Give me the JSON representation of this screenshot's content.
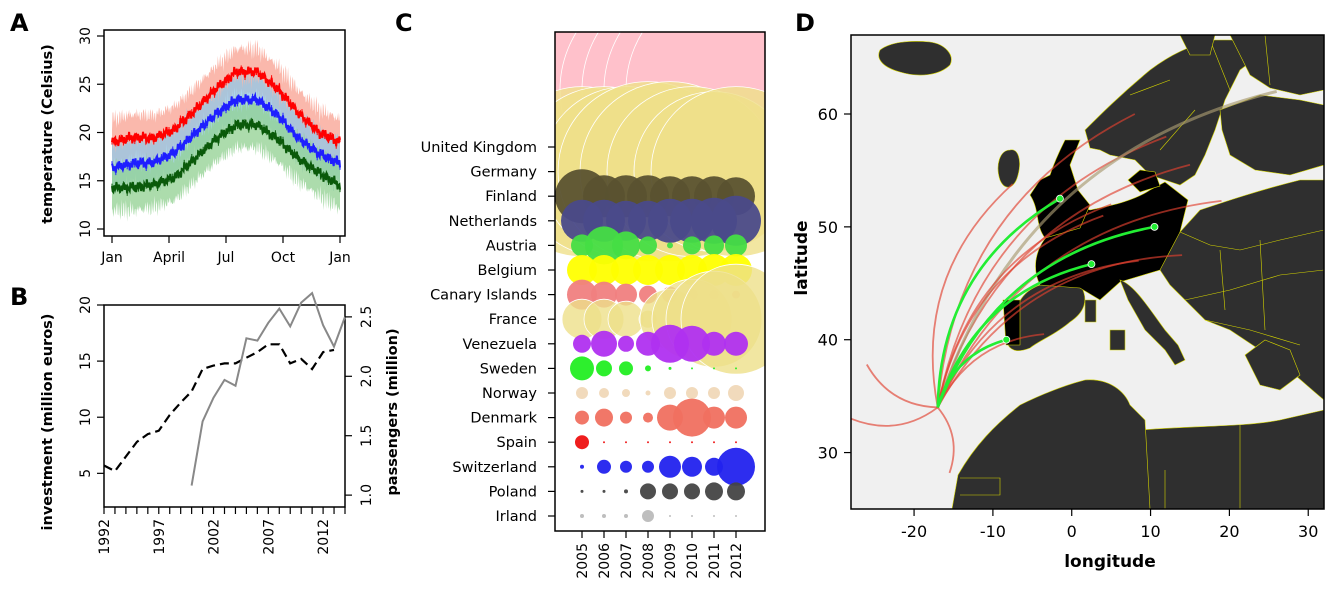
{
  "panels": {
    "A": "A",
    "B": "B",
    "C": "C",
    "D": "D"
  },
  "chart_data": [
    {
      "panel": "A",
      "type": "line",
      "ylabel": "temperature (Celsius)",
      "xlabel": "",
      "x_tick_labels": [
        "Jan",
        "April",
        "Jul",
        "Oct",
        "Jan"
      ],
      "ylim": [
        10,
        30
      ],
      "y_ticks": [
        10,
        15,
        20,
        25,
        30
      ],
      "series": [
        {
          "color": "#ff0000",
          "band_color": "#f8a090",
          "values": [
            19.0,
            19.5,
            19.4,
            20.3,
            22.3,
            24.5,
            26.3,
            26.3,
            24.5,
            22.0,
            20.0,
            19.0
          ]
        },
        {
          "color": "#1f1fff",
          "band_color": "#90c8e8",
          "values": [
            16.3,
            16.8,
            16.9,
            17.9,
            19.9,
            21.9,
            23.4,
            23.4,
            21.8,
            19.4,
            17.8,
            16.8
          ]
        },
        {
          "color": "#0a5a0a",
          "band_color": "#90d090",
          "values": [
            14.3,
            14.3,
            14.6,
            15.3,
            17.3,
            19.3,
            20.8,
            20.8,
            19.3,
            17.3,
            15.8,
            14.5
          ]
        }
      ]
    },
    {
      "panel": "B",
      "type": "line",
      "ylabel": "investment (million euros)",
      "y2label": "passengers (million)",
      "x_tick_labels": [
        "1992",
        "1997",
        "2002",
        "2007",
        "2012"
      ],
      "x_ticks": [
        1992,
        1997,
        2002,
        2007,
        2012
      ],
      "xlim": [
        1992,
        2014
      ],
      "ylim": [
        2,
        20
      ],
      "y_ticks": [
        5,
        10,
        15,
        20
      ],
      "y2lim": [
        0.9,
        2.6
      ],
      "y2_ticks": [
        1.0,
        1.5,
        2.0,
        2.5
      ],
      "series": [
        {
          "axis": "left",
          "style": "dashed",
          "x": [
            1992,
            1993,
            1994,
            1995,
            1996,
            1997,
            1998,
            1999,
            2000,
            2001,
            2002,
            2003,
            2004,
            2005,
            2006,
            2007,
            2008,
            2009,
            2010,
            2011,
            2012,
            2013
          ],
          "values": [
            5.7,
            5.2,
            6.5,
            7.8,
            8.5,
            8.8,
            10.2,
            11.3,
            12.3,
            14.3,
            14.6,
            14.8,
            14.8,
            15.3,
            15.8,
            16.5,
            16.5,
            14.8,
            15.2,
            14.3,
            15.8,
            16.0
          ]
        },
        {
          "axis": "right",
          "style": "solid",
          "x": [
            2000,
            2001,
            2002,
            2003,
            2004,
            2005,
            2006,
            2007,
            2008,
            2009,
            2010,
            2011,
            2012,
            2013,
            2014
          ],
          "values": [
            1.08,
            1.62,
            1.82,
            1.97,
            1.92,
            2.32,
            2.3,
            2.45,
            2.57,
            2.42,
            2.62,
            2.7,
            2.43,
            2.25,
            2.5
          ]
        }
      ]
    },
    {
      "panel": "C",
      "type": "scatter",
      "xlabel": "",
      "years": [
        "2005",
        "2006",
        "2007",
        "2008",
        "2009",
        "2010",
        "2011",
        "2012"
      ],
      "countries": [
        "United Kingdom",
        "Germany",
        "Finland",
        "Netherlands",
        "Austria",
        "Belgium",
        "Canary Islands",
        "France",
        "Venezuela",
        "Sweden",
        "Norway",
        "Denmark",
        "Spain",
        "Switzerland",
        "Poland",
        "Irland"
      ],
      "colors": [
        "#ffc0cb",
        "#efe08a",
        "#5a5230",
        "#4a4a8a",
        "#44dd44",
        "#ffff00",
        "#f08080",
        "#ede08a",
        "#b030f0",
        "#22ee22",
        "#f0d8b8",
        "#f07060",
        "#ee1111",
        "#2222ee",
        "#444444",
        "#bbbbbb"
      ],
      "sizes": [
        [
          11,
          11,
          11,
          11,
          11,
          11,
          11,
          11
        ],
        [
          8.5,
          8.5,
          8.5,
          9,
          9,
          8.5,
          8,
          8.5
        ],
        [
          2.7,
          2.1,
          2.1,
          2.1,
          2.0,
          2.0,
          2.0,
          1.9
        ],
        [
          2.1,
          2.1,
          2.0,
          2.0,
          2.2,
          2.2,
          2.3,
          2.5
        ],
        [
          1.1,
          1.9,
          1.4,
          0.9,
          0.3,
          0.9,
          1.0,
          1.1
        ],
        [
          1.5,
          1.5,
          1.5,
          1.5,
          1.5,
          1.5,
          1.6,
          1.6
        ],
        [
          1.5,
          1.3,
          1.1,
          0.9,
          0.8,
          0.6,
          0.5,
          0.4
        ],
        [
          2.0,
          2.0,
          1.8,
          0.9,
          3.0,
          4.0,
          4.8,
          5.5
        ],
        [
          0.9,
          1.3,
          0.8,
          1.2,
          1.9,
          1.8,
          1.2,
          1.2
        ],
        [
          1.2,
          0.8,
          0.7,
          0.3,
          0.15,
          0.1,
          0.1,
          0.1
        ],
        [
          0.6,
          0.5,
          0.4,
          0.25,
          0.6,
          0.6,
          0.6,
          0.8
        ],
        [
          0.7,
          0.9,
          0.6,
          0.5,
          1.3,
          1.9,
          1.1,
          1.1
        ],
        [
          0.7,
          0.1,
          0.1,
          0.1,
          0.1,
          0.1,
          0.1,
          0.1
        ],
        [
          0.2,
          0.7,
          0.6,
          0.6,
          1.1,
          1.0,
          0.9,
          1.9
        ],
        [
          0.15,
          0.15,
          0.2,
          0.8,
          0.8,
          0.8,
          0.9,
          0.9
        ],
        [
          0.2,
          0.2,
          0.2,
          0.6,
          0.1,
          0.1,
          0.1,
          0.1
        ]
      ]
    },
    {
      "panel": "D",
      "type": "map",
      "xlabel": "longitude",
      "ylabel": "latitude",
      "xlim": [
        -28,
        32
      ],
      "ylim": [
        25,
        67
      ],
      "x_ticks": [
        -20,
        -10,
        0,
        10,
        20,
        30
      ],
      "y_ticks": [
        30,
        40,
        50,
        60
      ],
      "origin": {
        "lon": -17,
        "lat": 34
      },
      "green_destinations": [
        {
          "lon": -1.5,
          "lat": 52.5
        },
        {
          "lon": 2.5,
          "lat": 46.7
        },
        {
          "lon": 10.5,
          "lat": 50.0
        },
        {
          "lon": -8.3,
          "lat": 40.0
        }
      ],
      "red_destinations": [
        {
          "lon": 8,
          "lat": 60
        },
        {
          "lon": 12,
          "lat": 58
        },
        {
          "lon": 15,
          "lat": 55.5
        },
        {
          "lon": 19,
          "lat": 52.3
        },
        {
          "lon": 26,
          "lat": 62
        },
        {
          "lon": 14,
          "lat": 47.5
        },
        {
          "lon": 8.5,
          "lat": 47
        },
        {
          "lon": 5,
          "lat": 52
        },
        {
          "lon": -7.5,
          "lat": 53.8
        },
        {
          "lon": -3.5,
          "lat": 40.5
        },
        {
          "lon": 4,
          "lat": 51
        },
        {
          "lon": -26,
          "lat": 37.8
        },
        {
          "lon": -28,
          "lat": 33
        },
        {
          "lon": -15.5,
          "lat": 28.2
        }
      ]
    }
  ]
}
